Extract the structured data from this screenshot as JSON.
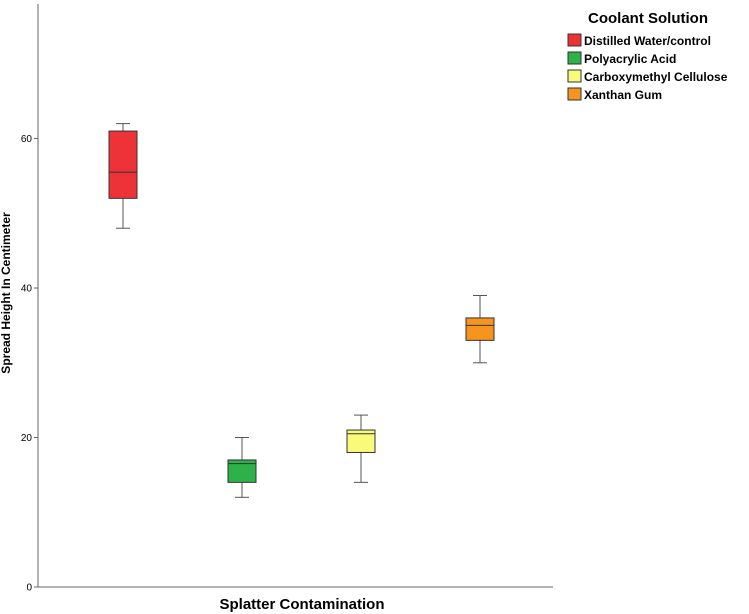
{
  "chart_data": {
    "type": "boxplot",
    "title": "",
    "xlabel": "Splatter Contamination",
    "ylabel": "Spread Height In Centimeter",
    "ylim": [
      0,
      78
    ],
    "yticks": [
      0,
      20,
      40,
      60
    ],
    "grid": false,
    "legend": {
      "title": "Coolant  Solution",
      "placement": "top-right"
    },
    "series": [
      {
        "name": "Distilled Water/control",
        "color": "#ee3338",
        "min": 48,
        "q1": 52,
        "median": 55.5,
        "q3": 61,
        "max": 62
      },
      {
        "name": "Polyacrylic Acid",
        "color": "#2db24a",
        "min": 12,
        "q1": 14,
        "median": 16.5,
        "q3": 17,
        "max": 20
      },
      {
        "name": "Carboxymethyl Cellulose",
        "color": "#fafa7a",
        "min": 14,
        "q1": 18,
        "median": 20.5,
        "q3": 21,
        "max": 23
      },
      {
        "name": "Xanthan Gum",
        "color": "#f7941d",
        "min": 30,
        "q1": 33,
        "median": 35,
        "q3": 36,
        "max": 39
      }
    ]
  }
}
